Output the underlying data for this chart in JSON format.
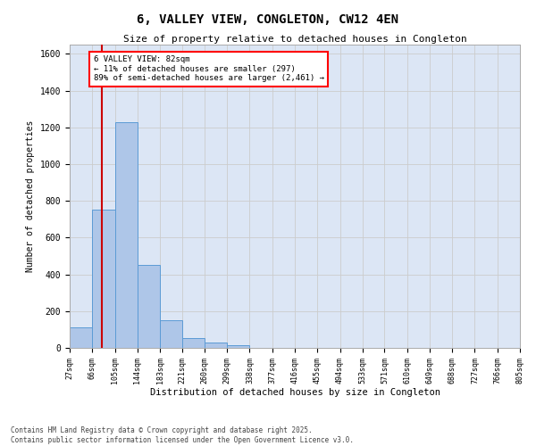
{
  "title": "6, VALLEY VIEW, CONGLETON, CW12 4EN",
  "subtitle": "Size of property relative to detached houses in Congleton",
  "xlabel": "Distribution of detached houses by size in Congleton",
  "ylabel": "Number of detached properties",
  "bar_values": [
    110,
    750,
    1230,
    450,
    150,
    55,
    30,
    15,
    0,
    0,
    0,
    0,
    0,
    0,
    0,
    0,
    0,
    0,
    0,
    0
  ],
  "bin_labels": [
    "27sqm",
    "66sqm",
    "105sqm",
    "144sqm",
    "183sqm",
    "221sqm",
    "260sqm",
    "299sqm",
    "338sqm",
    "377sqm",
    "416sqm",
    "455sqm",
    "494sqm",
    "533sqm",
    "571sqm",
    "610sqm",
    "649sqm",
    "688sqm",
    "727sqm",
    "766sqm",
    "805sqm"
  ],
  "bar_color": "#aec6e8",
  "bar_edge_color": "#5b9bd5",
  "grid_color": "#cccccc",
  "background_color": "#dce6f5",
  "annotation_text": "6 VALLEY VIEW: 82sqm\n← 11% of detached houses are smaller (297)\n89% of semi-detached houses are larger (2,461) →",
  "vline_x": 82,
  "vline_color": "#cc0000",
  "ylim": [
    0,
    1650
  ],
  "yticks": [
    0,
    200,
    400,
    600,
    800,
    1000,
    1200,
    1400,
    1600
  ],
  "footer_line1": "Contains HM Land Registry data © Crown copyright and database right 2025.",
  "footer_line2": "Contains public sector information licensed under the Open Government Licence v3.0.",
  "bin_edges": [
    27,
    66,
    105,
    144,
    183,
    221,
    260,
    299,
    338,
    377,
    416,
    455,
    494,
    533,
    571,
    610,
    649,
    688,
    727,
    766,
    805
  ]
}
